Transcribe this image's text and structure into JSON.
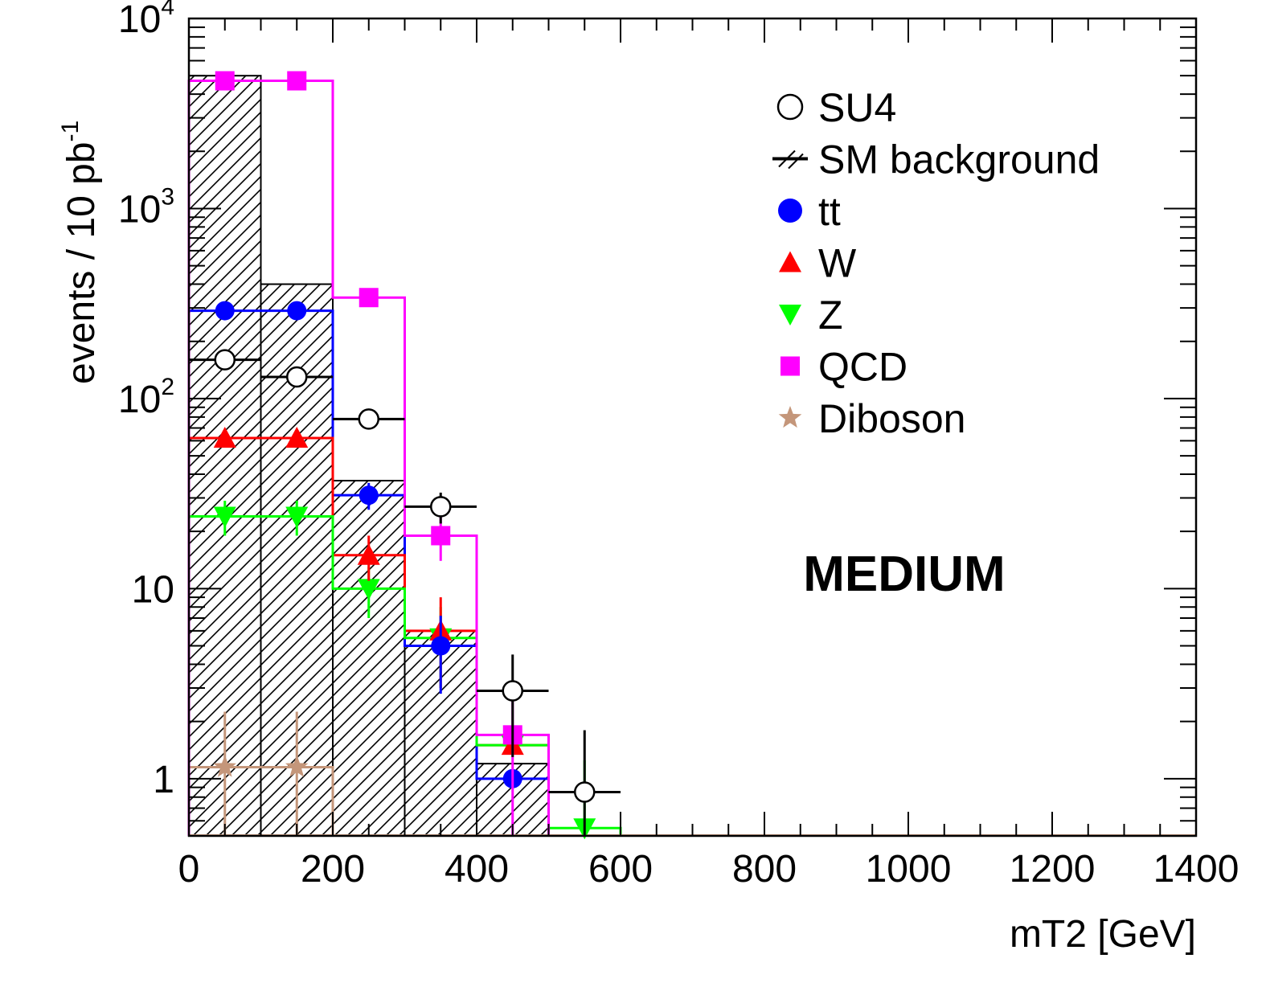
{
  "chart_data": {
    "type": "bar",
    "subtype": "stacked-histogram-with-points",
    "title": "",
    "xlabel": "mT2 [GeV]",
    "ylabel": "events / 10 pb",
    "ylabel_sup": "-1",
    "yscale": "log",
    "xlim": [
      0,
      1400
    ],
    "ylim": [
      0.5,
      10000
    ],
    "x_ticks": [
      "0",
      "200",
      "400",
      "600",
      "800",
      "1000",
      "1200",
      "1400"
    ],
    "y_ticks": [
      {
        "value": 1,
        "base": "1",
        "exp": ""
      },
      {
        "value": 10,
        "base": "10",
        "exp": ""
      },
      {
        "value": 100,
        "base": "10",
        "exp": "2"
      },
      {
        "value": 1000,
        "base": "10",
        "exp": "3"
      },
      {
        "value": 10000,
        "base": "10",
        "exp": "4"
      }
    ],
    "annotation": "MEDIUM",
    "grid": false,
    "legend_position": "top-right",
    "bin_edges": [
      0,
      100,
      200,
      300,
      400,
      500,
      600,
      700,
      800,
      900,
      1000,
      1100,
      1200,
      1300,
      1400
    ],
    "sm_background": {
      "name": "SM background",
      "values": [
        5000,
        400,
        37,
        6,
        1.2,
        0,
        0,
        0,
        0,
        0,
        0,
        0,
        0,
        0
      ]
    },
    "series": [
      {
        "name": "tt",
        "color": "#0000ff",
        "marker": "circle",
        "values": [
          290,
          290,
          31,
          5,
          1.0
        ],
        "err": [
          0,
          0,
          5,
          2.2,
          0
        ]
      },
      {
        "name": "W",
        "color": "#ff0000",
        "marker": "triangle-up",
        "values": [
          62,
          62,
          15,
          6,
          1.5
        ],
        "err": [
          0,
          0,
          4,
          3,
          0
        ]
      },
      {
        "name": "Z",
        "color": "#00ff00",
        "marker": "triangle-down",
        "values": [
          24,
          24,
          10,
          5.5,
          1.5,
          0.55
        ],
        "err": [
          5,
          5,
          3,
          2.5,
          0,
          0.7
        ]
      },
      {
        "name": "QCD",
        "color": "#ff00ff",
        "marker": "square",
        "values": [
          4700,
          4700,
          340,
          19,
          1.7
        ],
        "err": [
          0,
          0,
          0,
          5,
          1.3
        ]
      },
      {
        "name": "Diboson",
        "color": "#c4967a",
        "marker": "star",
        "values": [
          1.15,
          1.15
        ],
        "err": [
          1.1,
          1.1
        ]
      }
    ],
    "signal": {
      "name": "SU4",
      "color": "#000000",
      "marker": "open-circle",
      "x": [
        50,
        150,
        250,
        350,
        450,
        550
      ],
      "values": [
        160,
        130,
        78,
        27,
        2.9,
        0.85
      ],
      "err": [
        0,
        0,
        0,
        5,
        1.6,
        0.95
      ]
    }
  }
}
